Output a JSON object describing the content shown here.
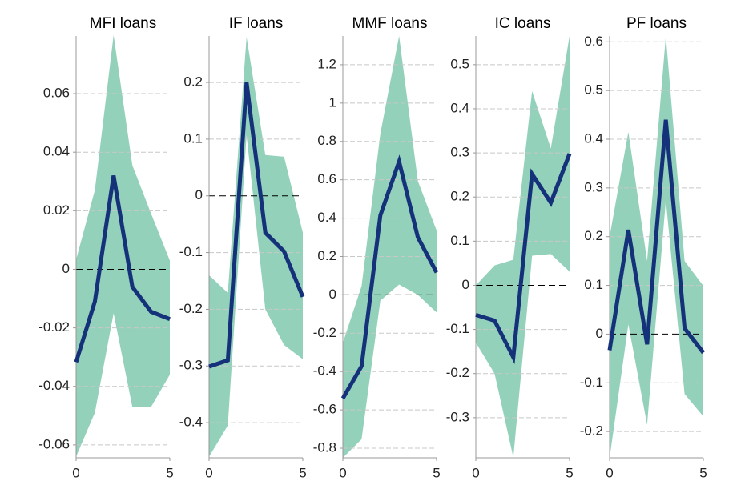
{
  "chart_data": [
    {
      "type": "line",
      "title": "MFI loans",
      "x": [
        0,
        1,
        2,
        3,
        4,
        5
      ],
      "xlim": [
        0,
        5
      ],
      "xticks": [
        0,
        5
      ],
      "ylim": [
        -0.0644,
        0.0797
      ],
      "yticks": [
        -0.06,
        -0.04,
        -0.02,
        0,
        0.02,
        0.04,
        0.06
      ],
      "grid": true,
      "line": {
        "color": "#14317a",
        "values": [
          -0.0317,
          -0.011,
          0.032,
          -0.006,
          -0.0145,
          -0.017
        ]
      },
      "band": {
        "color": "#93d1bb",
        "upper": [
          0.0033,
          0.027,
          0.08,
          0.0355,
          0.019,
          0.003
        ],
        "lower": [
          -0.064,
          -0.049,
          -0.015,
          -0.047,
          -0.047,
          -0.036
        ]
      }
    },
    {
      "type": "line",
      "title": "IF loans",
      "x": [
        0,
        1,
        2,
        3,
        4,
        5
      ],
      "xlim": [
        0,
        5
      ],
      "xticks": [
        0,
        5
      ],
      "ylim": [
        -0.462,
        0.282
      ],
      "yticks": [
        -0.4,
        -0.3,
        -0.2,
        -0.1,
        0,
        0.1,
        0.2
      ],
      "grid": true,
      "line": {
        "color": "#14317a",
        "values": [
          -0.301,
          -0.29,
          0.2,
          -0.065,
          -0.098,
          -0.178
        ]
      },
      "band": {
        "color": "#93d1bb",
        "upper": [
          -0.14,
          -0.171,
          0.28,
          0.072,
          0.069,
          -0.065
        ],
        "lower": [
          -0.46,
          -0.405,
          0.107,
          -0.2,
          -0.263,
          -0.288
        ]
      }
    },
    {
      "type": "line",
      "title": "MMF loans",
      "x": [
        0,
        1,
        2,
        3,
        4,
        5
      ],
      "xlim": [
        0,
        5
      ],
      "xticks": [
        0,
        5
      ],
      "ylim": [
        -0.85,
        1.35
      ],
      "yticks": [
        -0.8,
        -0.6,
        -0.4,
        -0.2,
        0,
        0.2,
        0.4,
        0.6,
        0.8,
        1,
        1.2
      ],
      "grid": true,
      "line": {
        "color": "#14317a",
        "values": [
          -0.54,
          -0.372,
          0.414,
          0.695,
          0.3,
          0.117
        ]
      },
      "band": {
        "color": "#93d1bb",
        "upper": [
          -0.25,
          0.046,
          0.84,
          1.35,
          0.594,
          0.335
        ],
        "lower": [
          -0.85,
          -0.753,
          -0.03,
          0.054,
          0,
          -0.092
        ]
      }
    },
    {
      "type": "line",
      "title": "IC loans",
      "x": [
        0,
        1,
        2,
        3,
        4,
        5
      ],
      "xlim": [
        0,
        5
      ],
      "xticks": [
        0,
        5
      ],
      "ylim": [
        -0.391,
        0.565
      ],
      "yticks": [
        -0.3,
        -0.2,
        -0.1,
        0,
        0.1,
        0.2,
        0.3,
        0.4,
        0.5
      ],
      "grid": true,
      "line": {
        "color": "#14317a",
        "values": [
          -0.067,
          -0.08,
          -0.163,
          0.252,
          0.187,
          0.298
        ]
      },
      "band": {
        "color": "#93d1bb",
        "upper": [
          0,
          0.045,
          0.058,
          0.44,
          0.31,
          0.565
        ],
        "lower": [
          -0.13,
          -0.2,
          -0.39,
          0.067,
          0.071,
          0.031
        ]
      }
    },
    {
      "type": "line",
      "title": "PF loans",
      "x": [
        0,
        1,
        2,
        3,
        4,
        5
      ],
      "xlim": [
        0,
        5
      ],
      "xticks": [
        0,
        5
      ],
      "ylim": [
        -0.254,
        0.612
      ],
      "yticks": [
        -0.2,
        -0.1,
        0,
        0.1,
        0.2,
        0.3,
        0.4,
        0.5,
        0.6
      ],
      "grid": true,
      "line": {
        "color": "#14317a",
        "values": [
          -0.033,
          0.214,
          -0.021,
          0.44,
          0.012,
          -0.038
        ]
      },
      "band": {
        "color": "#93d1bb",
        "upper": [
          0.2,
          0.415,
          0.15,
          0.612,
          0.15,
          0.099
        ],
        "lower": [
          -0.254,
          0.02,
          -0.186,
          0.275,
          -0.123,
          -0.169
        ]
      }
    }
  ]
}
